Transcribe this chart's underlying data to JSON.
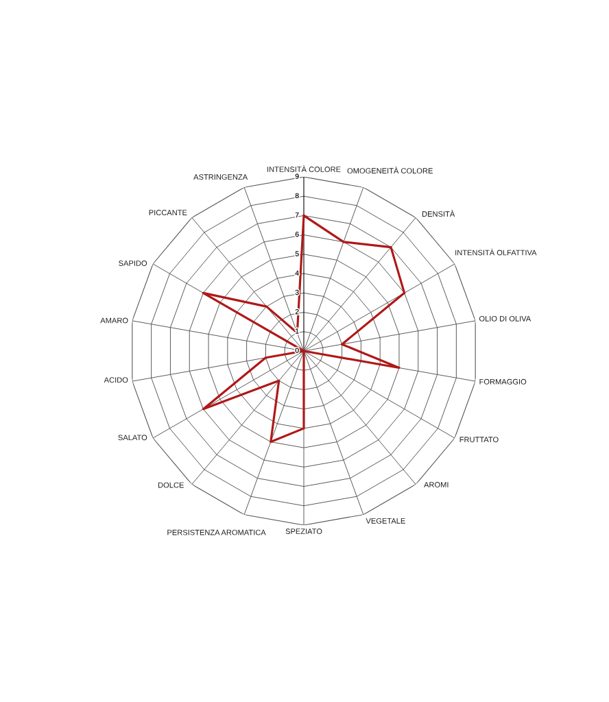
{
  "chart_data": {
    "type": "radar",
    "categories": [
      "INTENSITÀ COLORE",
      "OMOGENEITÀ COLORE",
      "DENSITÀ",
      "INTENSITÀ OLFATTIVA",
      "OLIO DI OLIVA",
      "FORMAGGIO",
      "FRUTTATO",
      "AROMI",
      "VEGETALE",
      "SPEZIATO",
      "PERSISTENZA AROMATICA",
      "DOLCE",
      "SALATO",
      "ACIDO",
      "AMARO",
      "SAPIDO",
      "PICCANTE",
      "ASTRINGENZA"
    ],
    "series": [
      {
        "color": "#b01818",
        "values": [
          7,
          6,
          7,
          6,
          2,
          5,
          0,
          0,
          0,
          4,
          5,
          2,
          6,
          2,
          0,
          6,
          3,
          1
        ]
      }
    ],
    "ylim": [
      0,
      9
    ],
    "yticks": [
      0,
      1,
      2,
      3,
      4,
      5,
      6,
      7,
      8,
      9
    ],
    "grid": true,
    "line_style": "solid"
  }
}
